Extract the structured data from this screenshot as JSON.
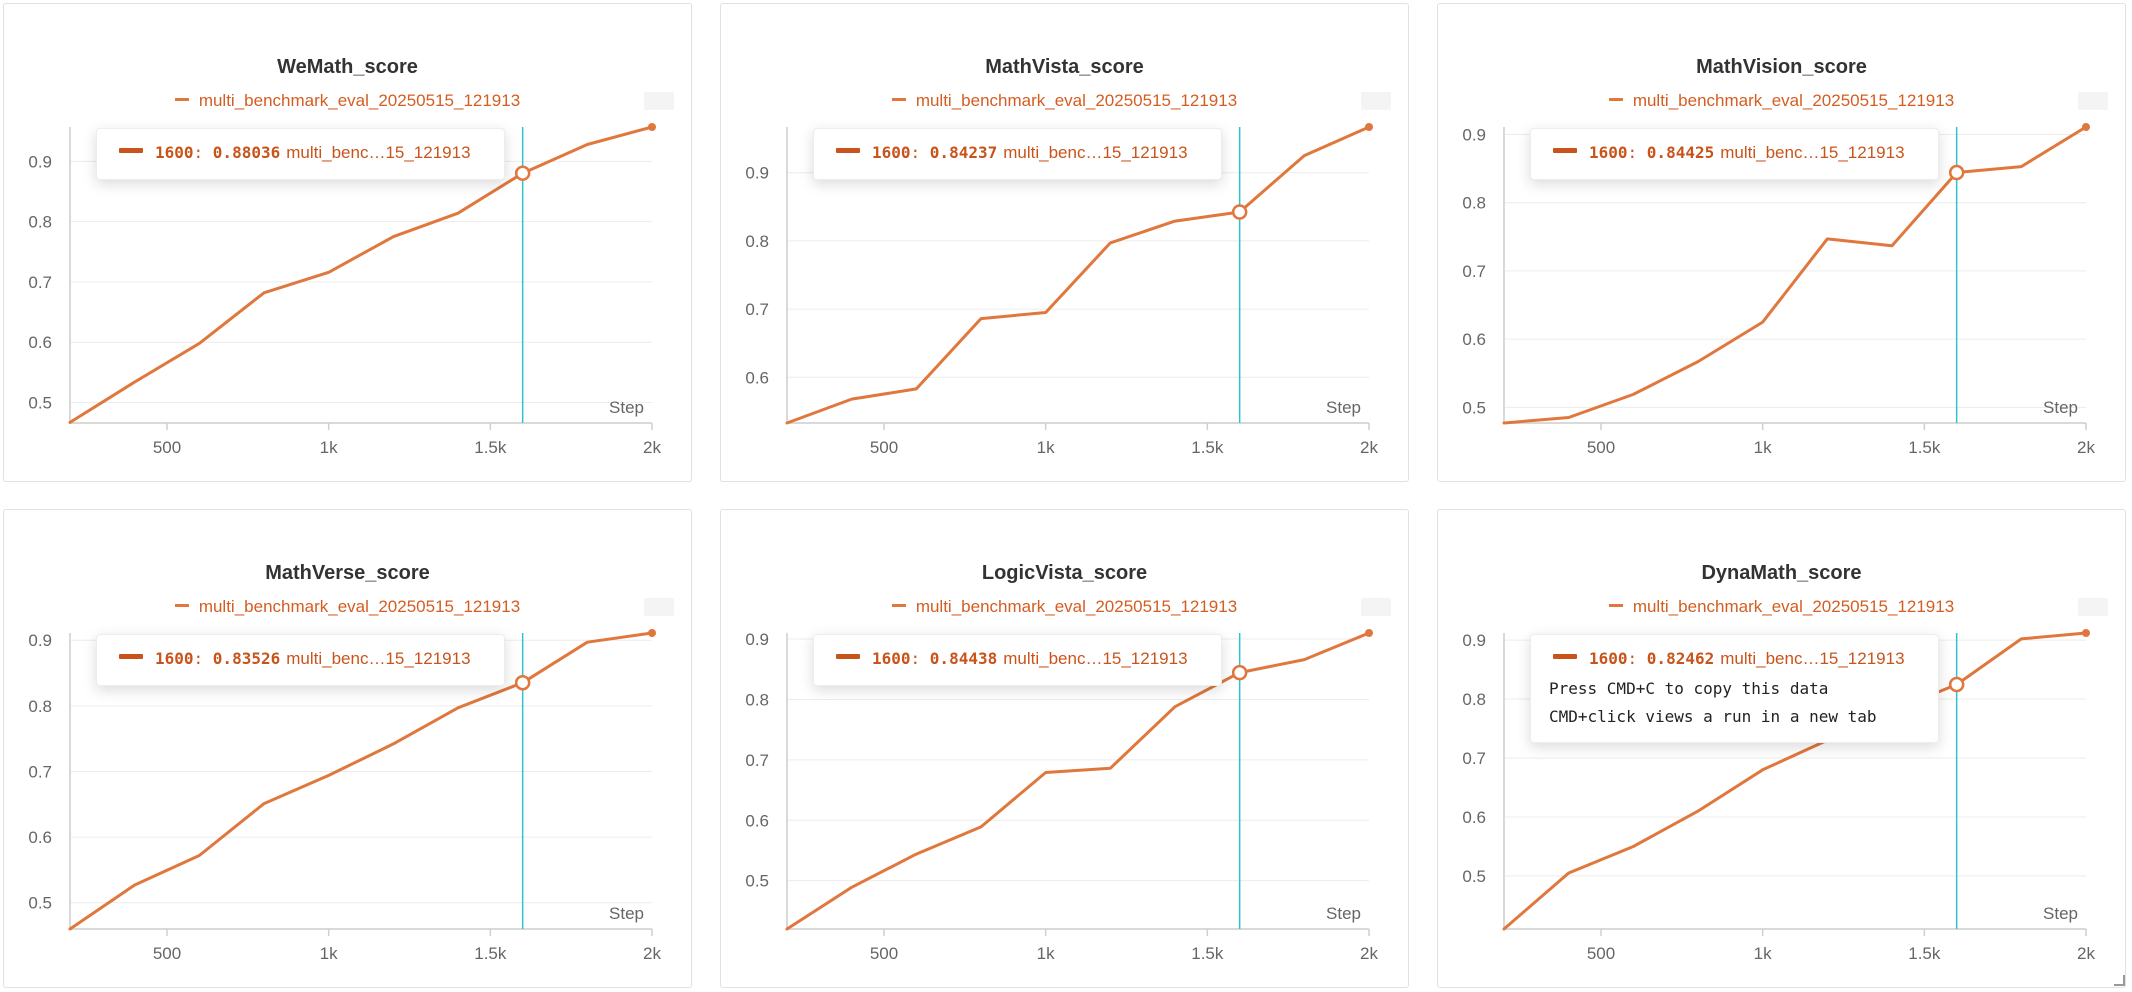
{
  "run_name": "multi_benchmark_eval_20250515_121913",
  "x_axis_label": "Step",
  "x_ticks": [
    {
      "v": 500,
      "label": "500"
    },
    {
      "v": 1000,
      "label": "1k"
    },
    {
      "v": 1500,
      "label": "1.5k"
    },
    {
      "v": 2000,
      "label": "2k"
    }
  ],
  "hover": {
    "step": "1600",
    "run_short": "multi_benc…15_121913",
    "copy_hint": "Press CMD+C to copy this data",
    "click_hint": "CMD+click views a run in a new tab"
  },
  "colors": {
    "line": "#e0773d",
    "text": "#d45d22",
    "tooltip_text": "#c9541b",
    "crosshair": "#2fc2d5"
  },
  "panels": [
    {
      "title": "WeMath_score",
      "value": "0.88036"
    },
    {
      "title": "MathVista_score",
      "value": "0.84237"
    },
    {
      "title": "MathVision_score",
      "value": "0.84425"
    },
    {
      "title": "MathVerse_score",
      "value": "0.83526"
    },
    {
      "title": "LogicVista_score",
      "value": "0.84438"
    },
    {
      "title": "DynaMath_score",
      "value": "0.82462"
    }
  ],
  "chart_data": [
    {
      "type": "line",
      "title": "WeMath_score",
      "series": [
        {
          "name": "multi_benchmark_eval_20250515_121913",
          "x": [
            200,
            400,
            600,
            800,
            1000,
            1200,
            1400,
            1600,
            1800,
            2000
          ],
          "y": [
            0.467,
            0.534,
            0.598,
            0.682,
            0.716,
            0.775,
            0.814,
            0.88036,
            0.928,
            0.957
          ]
        }
      ],
      "xlabel": "Step",
      "xlim": [
        200,
        2000
      ],
      "ylim": [
        0.466,
        0.957
      ],
      "yticks": [
        0.5,
        0.6,
        0.7,
        0.8,
        0.9
      ],
      "grid": true,
      "legend": "top-center"
    },
    {
      "type": "line",
      "title": "MathVista_score",
      "series": [
        {
          "name": "multi_benchmark_eval_20250515_121913",
          "x": [
            200,
            400,
            600,
            800,
            1000,
            1200,
            1400,
            1600,
            1800,
            2000
          ],
          "y": [
            0.533,
            0.568,
            0.583,
            0.686,
            0.695,
            0.797,
            0.829,
            0.84237,
            0.925,
            0.967
          ]
        }
      ],
      "xlabel": "Step",
      "xlim": [
        200,
        2000
      ],
      "ylim": [
        0.533,
        0.967
      ],
      "yticks": [
        0.6,
        0.7,
        0.8,
        0.9
      ],
      "grid": true,
      "legend": "top-center"
    },
    {
      "type": "line",
      "title": "MathVision_score",
      "series": [
        {
          "name": "multi_benchmark_eval_20250515_121913",
          "x": [
            200,
            400,
            600,
            800,
            1000,
            1200,
            1400,
            1600,
            1800,
            2000
          ],
          "y": [
            0.477,
            0.485,
            0.519,
            0.567,
            0.625,
            0.747,
            0.737,
            0.84425,
            0.853,
            0.911
          ]
        }
      ],
      "xlabel": "Step",
      "xlim": [
        200,
        2000
      ],
      "ylim": [
        0.477,
        0.911
      ],
      "yticks": [
        0.5,
        0.6,
        0.7,
        0.8,
        0.9
      ],
      "grid": true,
      "legend": "top-center"
    },
    {
      "type": "line",
      "title": "MathVerse_score",
      "series": [
        {
          "name": "multi_benchmark_eval_20250515_121913",
          "x": [
            200,
            400,
            600,
            800,
            1000,
            1200,
            1400,
            1600,
            1800,
            2000
          ],
          "y": [
            0.46,
            0.527,
            0.572,
            0.651,
            0.694,
            0.742,
            0.797,
            0.83526,
            0.897,
            0.911
          ]
        }
      ],
      "xlabel": "Step",
      "xlim": [
        200,
        2000
      ],
      "ylim": [
        0.46,
        0.911
      ],
      "yticks": [
        0.5,
        0.6,
        0.7,
        0.8,
        0.9
      ],
      "grid": true,
      "legend": "top-center"
    },
    {
      "type": "line",
      "title": "LogicVista_score",
      "series": [
        {
          "name": "multi_benchmark_eval_20250515_121913",
          "x": [
            200,
            400,
            600,
            800,
            1000,
            1200,
            1400,
            1600,
            1800,
            2000
          ],
          "y": [
            0.42,
            0.489,
            0.544,
            0.589,
            0.679,
            0.686,
            0.788,
            0.84438,
            0.866,
            0.91
          ]
        }
      ],
      "xlabel": "Step",
      "xlim": [
        200,
        2000
      ],
      "ylim": [
        0.42,
        0.91
      ],
      "yticks": [
        0.5,
        0.6,
        0.7,
        0.8,
        0.9
      ],
      "grid": true,
      "legend": "top-center"
    },
    {
      "type": "line",
      "title": "DynaMath_score",
      "series": [
        {
          "name": "multi_benchmark_eval_20250515_121913",
          "x": [
            200,
            400,
            600,
            800,
            1000,
            1200,
            1400,
            1600,
            1800,
            2000
          ],
          "y": [
            0.41,
            0.505,
            0.55,
            0.61,
            0.68,
            0.73,
            0.78,
            0.82462,
            0.902,
            0.912
          ]
        }
      ],
      "xlabel": "Step",
      "xlim": [
        200,
        2000
      ],
      "ylim": [
        0.41,
        0.912
      ],
      "yticks": [
        0.5,
        0.6,
        0.7,
        0.8,
        0.9
      ],
      "grid": true,
      "legend": "top-center"
    }
  ]
}
